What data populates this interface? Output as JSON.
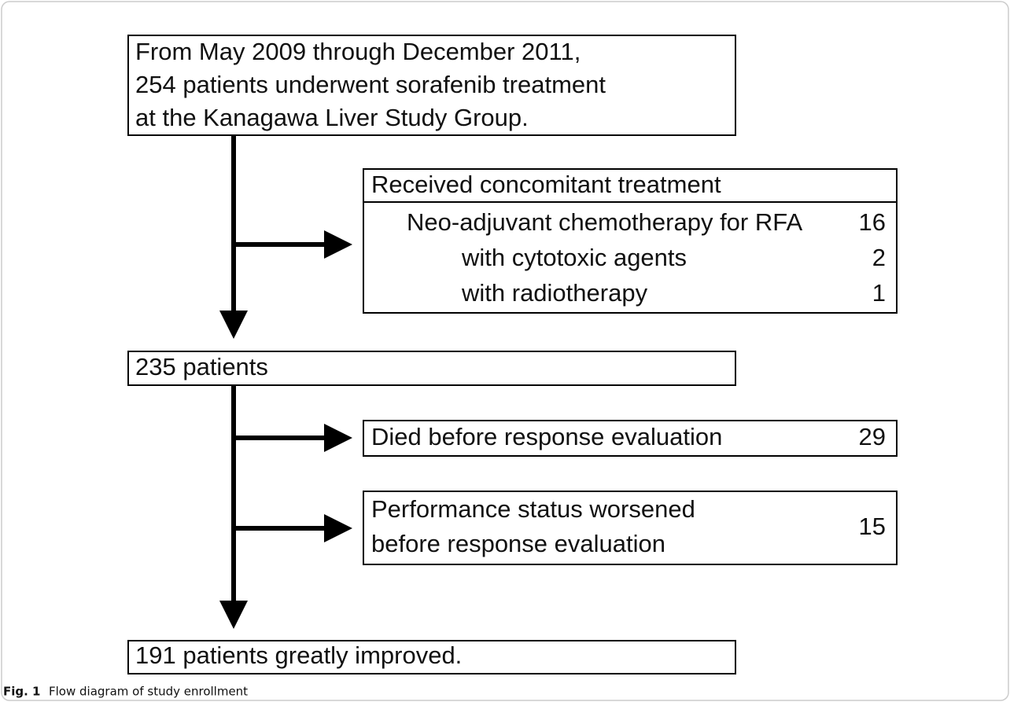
{
  "boxes": {
    "start": {
      "lines": [
        "From May 2009 through December 2011,",
        "254 patients underwent sorafenib treatment",
        "at the Kanagawa Liver Study Group."
      ]
    },
    "concomitant": {
      "title": "Received concomitant treatment",
      "rows": [
        {
          "label": "Neo-adjuvant chemotherapy for RFA",
          "count": 16
        },
        {
          "label": "with cytotoxic agents",
          "count": 2
        },
        {
          "label": "with radiotherapy",
          "count": 1
        }
      ]
    },
    "remaining": {
      "label": "235 patients"
    },
    "died": {
      "label": "Died before response evaluation",
      "count": 29
    },
    "performance": {
      "lines": [
        "Performance status worsened",
        "before response evaluation"
      ],
      "count": 15
    },
    "final": {
      "label": "191 patients greatly improved."
    }
  },
  "caption": {
    "label": "Fig. 1",
    "text": "Flow diagram of study enrollment"
  }
}
